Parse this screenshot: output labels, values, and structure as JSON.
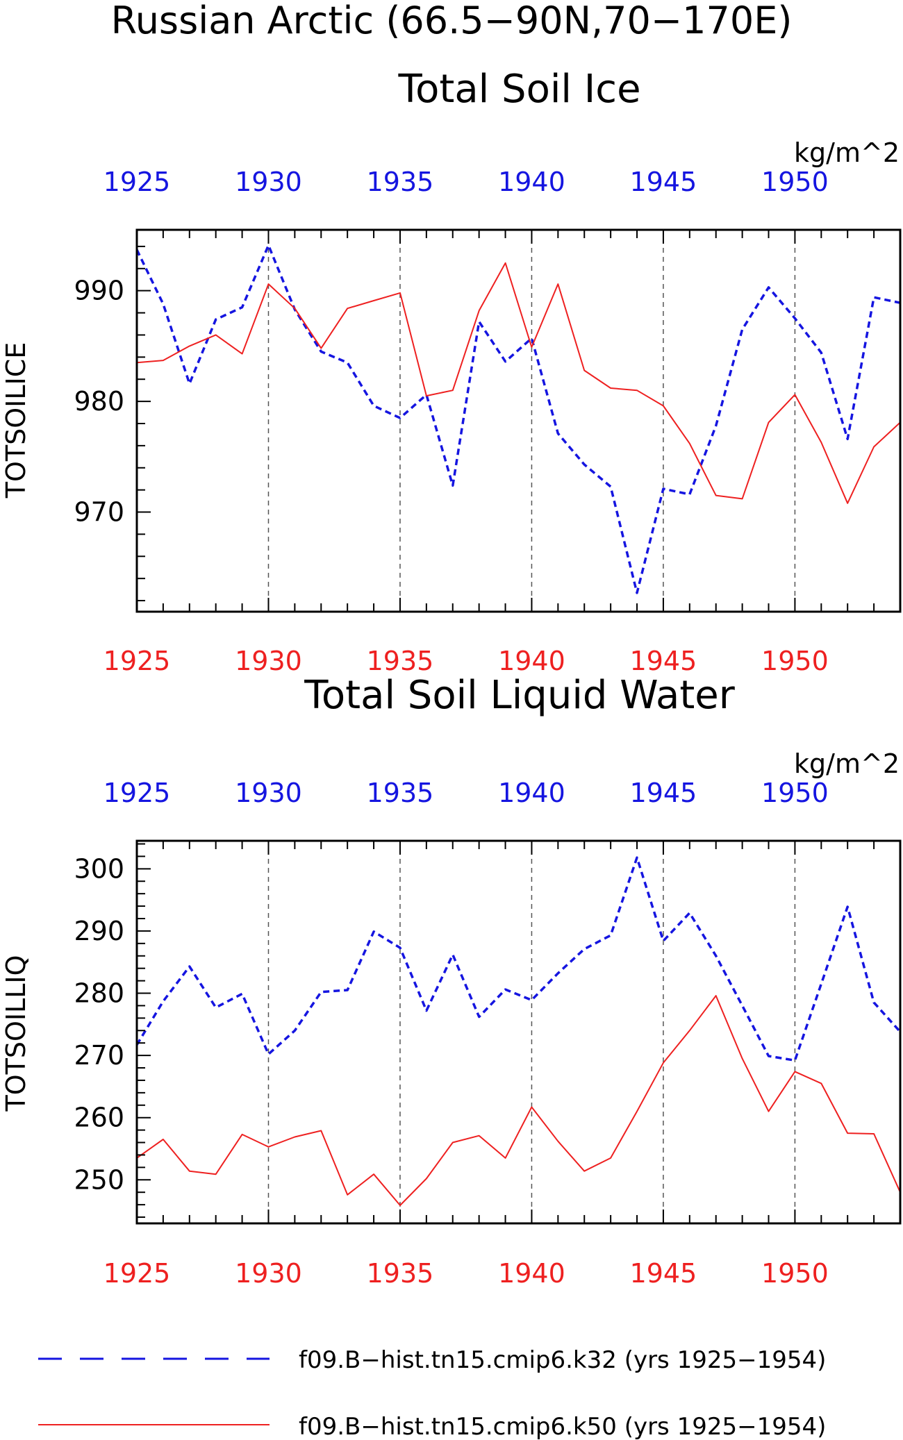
{
  "figure": {
    "title": "Russian Arctic (66.5−90N,70−170E)"
  },
  "colors": {
    "k32": "#1515e0",
    "k50": "#ee2020",
    "axis": "#000000",
    "grid": "#555555"
  },
  "legend": {
    "entries": [
      {
        "label": "f09.B−hist.tn15.cmip6.k32 (yrs 1925−1954)",
        "color": "#1515e0",
        "style": "dashed"
      },
      {
        "label": "f09.B−hist.tn15.cmip6.k50 (yrs 1925−1954)",
        "color": "#ee2020",
        "style": "solid"
      }
    ]
  },
  "chart_data": [
    {
      "type": "line",
      "title": "Total Soil Ice",
      "units": "kg/m^2",
      "ylabel": "TOTSOILICE",
      "xlim": [
        1925,
        1954
      ],
      "ylim": [
        961,
        995.5
      ],
      "xticks": [
        1925,
        1930,
        1935,
        1940,
        1945,
        1950
      ],
      "yticks": [
        970,
        980,
        990
      ],
      "x": [
        1925,
        1926,
        1927,
        1928,
        1929,
        1930,
        1931,
        1932,
        1933,
        1934,
        1935,
        1936,
        1937,
        1938,
        1939,
        1940,
        1941,
        1942,
        1943,
        1944,
        1945,
        1946,
        1947,
        1948,
        1949,
        1950,
        1951,
        1952,
        1953,
        1954
      ],
      "series": [
        {
          "name": "f09.B−hist.tn15.cmip6.k32 (yrs 1925−1954)",
          "color": "#1515e0",
          "style": "dashed",
          "values": [
            993.7,
            988.8,
            981.6,
            987.4,
            988.5,
            994.1,
            988.3,
            984.5,
            983.5,
            979.6,
            978.5,
            980.6,
            972.4,
            987.2,
            983.6,
            985.7,
            977.1,
            974.3,
            972.3,
            962.7,
            972.1,
            971.6,
            977.8,
            986.5,
            990.3,
            987.5,
            984.4,
            976.6,
            989.4,
            988.9
          ]
        },
        {
          "name": "f09.B−hist.tn15.cmip6.k50 (yrs 1925−1954)",
          "color": "#ee2020",
          "style": "solid",
          "values": [
            983.5,
            983.7,
            985.0,
            986.0,
            984.3,
            990.6,
            988.4,
            984.8,
            988.4,
            989.1,
            989.8,
            980.5,
            981.0,
            988.2,
            992.5,
            984.9,
            990.6,
            982.8,
            981.2,
            981.0,
            979.6,
            976.2,
            971.5,
            971.2,
            978.1,
            980.6,
            976.3,
            970.8,
            975.9,
            978.1
          ]
        }
      ]
    },
    {
      "type": "line",
      "title": "Total Soil Liquid Water",
      "units": "kg/m^2",
      "ylabel": "TOTSOILLIQ",
      "xlim": [
        1925,
        1954
      ],
      "ylim": [
        243,
        304.5
      ],
      "xticks": [
        1925,
        1930,
        1935,
        1940,
        1945,
        1950
      ],
      "yticks": [
        250,
        260,
        270,
        280,
        290,
        300
      ],
      "x": [
        1925,
        1926,
        1927,
        1928,
        1929,
        1930,
        1931,
        1932,
        1933,
        1934,
        1935,
        1936,
        1937,
        1938,
        1939,
        1940,
        1941,
        1942,
        1943,
        1944,
        1945,
        1946,
        1947,
        1948,
        1949,
        1950,
        1951,
        1952,
        1953,
        1954
      ],
      "series": [
        {
          "name": "f09.B−hist.tn15.cmip6.k32 (yrs 1925−1954)",
          "color": "#1515e0",
          "style": "dashed",
          "values": [
            271.7,
            278.7,
            284.3,
            277.7,
            279.9,
            270.2,
            274.0,
            280.2,
            280.5,
            289.9,
            287.3,
            277.2,
            286.2,
            276.2,
            280.6,
            278.9,
            283.2,
            287.1,
            289.3,
            301.8,
            288.4,
            292.9,
            286.0,
            278.0,
            269.9,
            269.2,
            281.5,
            293.9,
            278.5,
            273.8
          ]
        },
        {
          "name": "f09.B−hist.tn15.cmip6.k50 (yrs 1925−1954)",
          "color": "#ee2020",
          "style": "solid",
          "values": [
            253.5,
            256.5,
            251.4,
            250.9,
            257.3,
            255.3,
            256.9,
            257.9,
            247.6,
            250.9,
            245.9,
            250.2,
            256.0,
            257.1,
            253.5,
            261.7,
            256.2,
            251.4,
            253.5,
            261.0,
            268.8,
            274.0,
            279.6,
            269.5,
            261.0,
            267.4,
            265.5,
            257.5,
            257.4,
            248.0
          ]
        }
      ]
    }
  ]
}
